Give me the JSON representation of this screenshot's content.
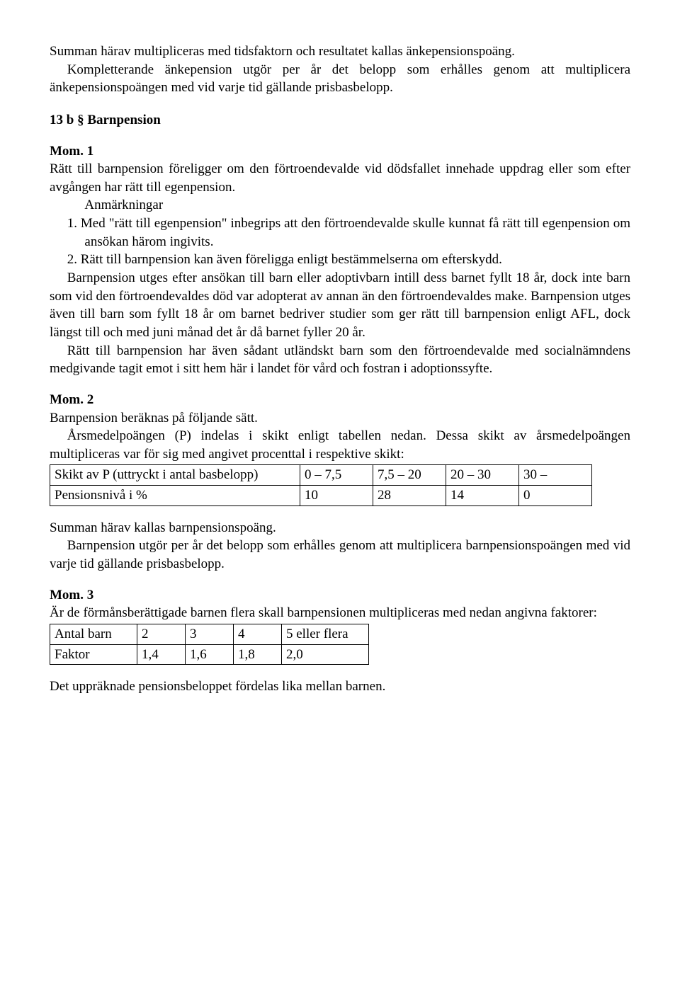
{
  "intro": {
    "p1": "Summan härav multipliceras med tidsfaktorn och resultatet kallas änkepensionspoäng.",
    "p2": "Kompletterande änkepension utgör per år det belopp som erhålles genom att multiplicera änkepensionspoängen med vid varje tid gällande prisbasbelopp."
  },
  "s13b": {
    "heading": "13 b § Barnpension",
    "mom1": {
      "title": "Mom. 1",
      "p1": "Rätt till barnpension föreligger om den förtroendevalde vid dödsfallet innehade uppdrag eller som efter avgången har rätt till egenpension.",
      "anm_label": "Anmärkningar",
      "item1": "1. Med \"rätt till egenpension\" inbegrips att den förtroendevalde skulle kunnat få rätt till egenpension om ansökan härom ingivits.",
      "item2": "2. Rätt till barnpension kan även föreligga enligt bestämmelserna om efterskydd.",
      "p2": "Barnpension utges efter ansökan till barn eller adoptivbarn intill dess barnet fyllt 18 år, dock inte barn som vid den förtroendevaldes död var adopterat av annan än den förtroendevaldes make. Barnpension utges även till barn som fyllt 18 år om barnet bedriver studier som ger rätt till barnpension enligt AFL, dock längst till och med juni månad det år då barnet fyller 20 år.",
      "p3": "Rätt till barnpension har även sådant utländskt barn som den förtroendevalde med socialnämndens medgivande tagit emot i sitt hem här i landet för vård och fostran i adoptionssyfte."
    },
    "mom2": {
      "title": "Mom. 2",
      "p1": "Barnpension beräknas på följande sätt.",
      "p2": "Årsmedelpoängen (P) indelas i skikt enligt tabellen nedan. Dessa skikt av årsmedelpoängen multipliceras var för sig med angivet procenttal i respektive skikt:",
      "table": {
        "row1_label": "Skikt av P   (uttryckt i antal basbelopp)",
        "row1_c1": "0 – 7,5",
        "row1_c2": "7,5 – 20",
        "row1_c3": "20 – 30",
        "row1_c4": "30 –",
        "row2_label": "Pensionsnivå i %",
        "row2_c1": "10",
        "row2_c2": "28",
        "row2_c3": "14",
        "row2_c4": "0"
      },
      "p3": "Summan härav kallas barnpensionspoäng.",
      "p4": "Barnpension utgör per år det belopp som erhålles genom att multiplicera barnpensionspoängen med vid varje tid gällande prisbasbelopp."
    },
    "mom3": {
      "title": "Mom. 3",
      "p1": "Är de förmånsberättigade barnen flera skall barnpensionen multipliceras med nedan angivna faktorer:",
      "table": {
        "row1_label": "Antal barn",
        "row1_c1": "2",
        "row1_c2": "3",
        "row1_c3": "4",
        "row1_c4": "5 eller flera",
        "row2_label": "Faktor",
        "row2_c1": "1,4",
        "row2_c2": "1,6",
        "row2_c3": "1,8",
        "row2_c4": "2,0"
      },
      "p2": "Det uppräknade pensionsbeloppet fördelas lika mellan barnen."
    }
  }
}
